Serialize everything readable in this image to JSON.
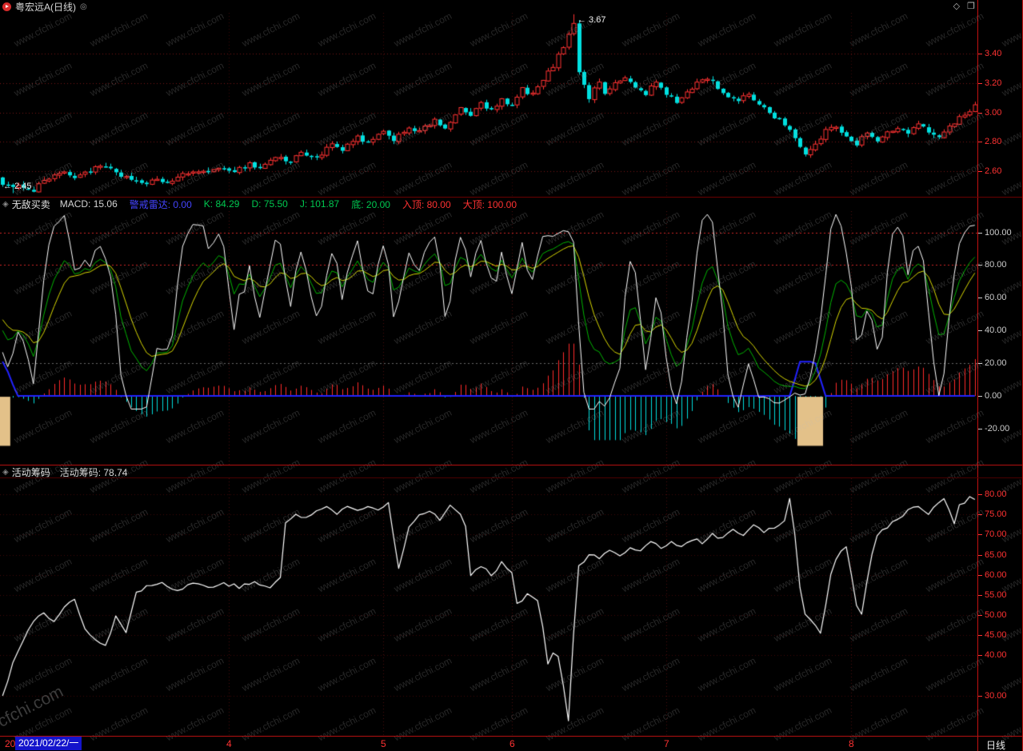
{
  "title_bar": {
    "stock": "粤宏远A(日线)",
    "favorite_icon": "◎",
    "corner_icon_diamond": "◇",
    "corner_icon_window": "❐"
  },
  "watermark": {
    "text": "www.cfchi.com",
    "big_text": "cfchi.com"
  },
  "indicator_header": {
    "icon": "◈",
    "name": "无敌买卖",
    "fields": [
      {
        "label": "MACD: 15.06",
        "color": "#d4d4d4"
      },
      {
        "label": "警戒雷达: 0.00",
        "color": "#4444ff"
      },
      {
        "label": "K: 84.29",
        "color": "#00c850"
      },
      {
        "label": "D: 75.50",
        "color": "#00c850"
      },
      {
        "label": "J: 101.87",
        "color": "#00c850"
      },
      {
        "label": "底: 20.00",
        "color": "#00c850"
      },
      {
        "label": "入顶: 80.00",
        "color": "#ff3232"
      },
      {
        "label": "大顶: 100.00",
        "color": "#ff3232"
      }
    ]
  },
  "chips_header": {
    "icon": "◈",
    "name": "活动筹码",
    "fields": [
      {
        "label": "活动筹码: 78.74",
        "color": "#d8d8d8"
      }
    ]
  },
  "xaxis": {
    "prefix": "20",
    "date": "2021/02/22/一",
    "months": [
      {
        "label": "4",
        "bar": 44
      },
      {
        "label": "5",
        "bar": 74
      },
      {
        "label": "6",
        "bar": 99
      },
      {
        "label": "7",
        "bar": 129
      },
      {
        "label": "8",
        "bar": 165
      }
    ],
    "period": "日线"
  },
  "chart_data": [
    {
      "type": "candlestick",
      "name": "price-daily",
      "axis_color": "#ff3232",
      "y_axis_labels": [
        "3.40",
        "3.20",
        "3.00",
        "2.80",
        "2.60"
      ],
      "ylim": [
        2.42,
        3.68
      ],
      "bars": 190,
      "up_color": "#ff3232",
      "down_color": "#00e0e0",
      "annotations": {
        "high": "← 3.67",
        "low": "← 2.45"
      },
      "high_bar": 111,
      "high_value": 3.67,
      "low_bar": 2,
      "low_value": 2.45,
      "close_waypoints": [
        [
          0,
          2.52
        ],
        [
          2,
          2.48
        ],
        [
          4,
          2.5
        ],
        [
          6,
          2.47
        ],
        [
          8,
          2.54
        ],
        [
          11,
          2.59
        ],
        [
          14,
          2.56
        ],
        [
          17,
          2.61
        ],
        [
          20,
          2.63
        ],
        [
          22,
          2.58
        ],
        [
          25,
          2.55
        ],
        [
          28,
          2.5
        ],
        [
          30,
          2.55
        ],
        [
          32,
          2.52
        ],
        [
          35,
          2.57
        ],
        [
          38,
          2.61
        ],
        [
          40,
          2.58
        ],
        [
          43,
          2.63
        ],
        [
          45,
          2.6
        ],
        [
          48,
          2.65
        ],
        [
          50,
          2.62
        ],
        [
          53,
          2.7
        ],
        [
          56,
          2.66
        ],
        [
          58,
          2.73
        ],
        [
          61,
          2.69
        ],
        [
          64,
          2.78
        ],
        [
          66,
          2.74
        ],
        [
          69,
          2.83
        ],
        [
          71,
          2.79
        ],
        [
          74,
          2.86
        ],
        [
          76,
          2.82
        ],
        [
          79,
          2.9
        ],
        [
          81,
          2.87
        ],
        [
          84,
          2.94
        ],
        [
          86,
          2.9
        ],
        [
          89,
          3.02
        ],
        [
          91,
          2.98
        ],
        [
          93,
          3.06
        ],
        [
          95,
          3.01
        ],
        [
          97,
          3.08
        ],
        [
          99,
          3.04
        ],
        [
          101,
          3.16
        ],
        [
          103,
          3.12
        ],
        [
          105,
          3.22
        ],
        [
          107,
          3.32
        ],
        [
          109,
          3.45
        ],
        [
          110,
          3.54
        ],
        [
          111,
          3.62
        ],
        [
          112,
          3.28
        ],
        [
          113,
          3.18
        ],
        [
          114,
          3.1
        ],
        [
          115,
          3.16
        ],
        [
          116,
          3.21
        ],
        [
          117,
          3.14
        ],
        [
          119,
          3.19
        ],
        [
          121,
          3.24
        ],
        [
          123,
          3.17
        ],
        [
          125,
          3.13
        ],
        [
          127,
          3.21
        ],
        [
          129,
          3.12
        ],
        [
          131,
          3.07
        ],
        [
          133,
          3.14
        ],
        [
          135,
          3.2
        ],
        [
          137,
          3.24
        ],
        [
          139,
          3.17
        ],
        [
          141,
          3.11
        ],
        [
          143,
          3.07
        ],
        [
          145,
          3.13
        ],
        [
          147,
          3.06
        ],
        [
          149,
          3.0
        ],
        [
          151,
          2.95
        ],
        [
          153,
          2.89
        ],
        [
          155,
          2.76
        ],
        [
          156,
          2.71
        ],
        [
          157,
          2.74
        ],
        [
          158,
          2.79
        ],
        [
          160,
          2.87
        ],
        [
          162,
          2.91
        ],
        [
          164,
          2.84
        ],
        [
          166,
          2.79
        ],
        [
          168,
          2.86
        ],
        [
          170,
          2.8
        ],
        [
          172,
          2.86
        ],
        [
          174,
          2.9
        ],
        [
          176,
          2.85
        ],
        [
          178,
          2.92
        ],
        [
          180,
          2.87
        ],
        [
          182,
          2.84
        ],
        [
          184,
          2.91
        ],
        [
          186,
          2.96
        ],
        [
          188,
          3.01
        ],
        [
          189,
          3.04
        ]
      ]
    },
    {
      "type": "kdj_macd_oscillator",
      "name": "无敌买卖",
      "axis_color": "#cccccc",
      "y_axis_labels": [
        "100.00",
        "80.00",
        "60.00",
        "40.00",
        "20.00",
        "0.00",
        "-20.00"
      ],
      "y_axis_values": [
        100,
        80,
        60,
        40,
        20,
        0,
        -20
      ],
      "ylim": [
        -42,
        113
      ],
      "red_gridlines": [
        100,
        80
      ],
      "gray_gridlines": [
        20
      ],
      "kdj_params": [
        9,
        3,
        3
      ],
      "macd_params": [
        12,
        26,
        9
      ],
      "macd_scale": 500,
      "line_colors": {
        "j": "#ffffff",
        "k": "#00b400",
        "d": "#d8d800"
      },
      "hist_colors": {
        "pos": "#ff2a2a",
        "neg": "#00dcdc"
      },
      "radar_color": "#2222ff",
      "radar_waypoints": [
        [
          0,
          21
        ],
        [
          1,
          15
        ],
        [
          2,
          7
        ],
        [
          3,
          0
        ],
        [
          153,
          0
        ],
        [
          154,
          10
        ],
        [
          155,
          21
        ],
        [
          156,
          21
        ],
        [
          157,
          21
        ],
        [
          158,
          20
        ],
        [
          159,
          10
        ],
        [
          160,
          0
        ],
        [
          189,
          0
        ]
      ],
      "signal_blocks": [
        {
          "start": 0,
          "end": 1
        },
        {
          "start": 155,
          "end": 159
        }
      ],
      "signal_color": "#e3c189",
      "signal_depth": -30
    },
    {
      "type": "line",
      "name": "活动筹码",
      "axis_color": "#ff3232",
      "color": "#ffffff",
      "y_axis_labels": [
        "80.00",
        "75.00",
        "70.00",
        "65.00",
        "60.00",
        "55.00",
        "50.00",
        "45.00",
        "40.00",
        "30.00"
      ],
      "y_axis_values": [
        80,
        75,
        70,
        65,
        60,
        55,
        50,
        45,
        40,
        30
      ],
      "ylim": [
        20,
        84
      ],
      "last_value": 78.74,
      "value_waypoints": [
        [
          0,
          30
        ],
        [
          2,
          38
        ],
        [
          4,
          44
        ],
        [
          6,
          48
        ],
        [
          8,
          51
        ],
        [
          10,
          48
        ],
        [
          12,
          52
        ],
        [
          14,
          54
        ],
        [
          16,
          47
        ],
        [
          18,
          44
        ],
        [
          20,
          42
        ],
        [
          22,
          50
        ],
        [
          24,
          46
        ],
        [
          26,
          56
        ],
        [
          28,
          57
        ],
        [
          31,
          58
        ],
        [
          34,
          56
        ],
        [
          37,
          58
        ],
        [
          40,
          57
        ],
        [
          43,
          58
        ],
        [
          46,
          57
        ],
        [
          49,
          58
        ],
        [
          52,
          57
        ],
        [
          54,
          59
        ],
        [
          55,
          73
        ],
        [
          57,
          75
        ],
        [
          59,
          74
        ],
        [
          61,
          76
        ],
        [
          63,
          77
        ],
        [
          65,
          75
        ],
        [
          67,
          77
        ],
        [
          69,
          76
        ],
        [
          71,
          77
        ],
        [
          73,
          76
        ],
        [
          75,
          78
        ],
        [
          76,
          70
        ],
        [
          77,
          62
        ],
        [
          79,
          72
        ],
        [
          81,
          75
        ],
        [
          83,
          76
        ],
        [
          85,
          74
        ],
        [
          87,
          77
        ],
        [
          89,
          75
        ],
        [
          90,
          72
        ],
        [
          91,
          60
        ],
        [
          93,
          62
        ],
        [
          95,
          60
        ],
        [
          97,
          63
        ],
        [
          99,
          61
        ],
        [
          100,
          53
        ],
        [
          102,
          55
        ],
        [
          104,
          54
        ],
        [
          105,
          47
        ],
        [
          106,
          38
        ],
        [
          107,
          41
        ],
        [
          108,
          40
        ],
        [
          109,
          33
        ],
        [
          110,
          24
        ],
        [
          111,
          45
        ],
        [
          112,
          62
        ],
        [
          114,
          65
        ],
        [
          116,
          64
        ],
        [
          118,
          66
        ],
        [
          120,
          65
        ],
        [
          122,
          67
        ],
        [
          124,
          66
        ],
        [
          126,
          68
        ],
        [
          128,
          67
        ],
        [
          130,
          68
        ],
        [
          132,
          67
        ],
        [
          134,
          69
        ],
        [
          136,
          68
        ],
        [
          138,
          70
        ],
        [
          140,
          69
        ],
        [
          142,
          71
        ],
        [
          144,
          70
        ],
        [
          146,
          72
        ],
        [
          148,
          71
        ],
        [
          150,
          72
        ],
        [
          152,
          73
        ],
        [
          153,
          79
        ],
        [
          154,
          70
        ],
        [
          155,
          57
        ],
        [
          156,
          50
        ],
        [
          157,
          49
        ],
        [
          158,
          47
        ],
        [
          159,
          45
        ],
        [
          160,
          52
        ],
        [
          161,
          60
        ],
        [
          162,
          64
        ],
        [
          163,
          66
        ],
        [
          164,
          67
        ],
        [
          165,
          60
        ],
        [
          166,
          52
        ],
        [
          167,
          50
        ],
        [
          168,
          58
        ],
        [
          169,
          65
        ],
        [
          170,
          70
        ],
        [
          172,
          72
        ],
        [
          174,
          74
        ],
        [
          176,
          76
        ],
        [
          178,
          77
        ],
        [
          180,
          75
        ],
        [
          182,
          78
        ],
        [
          183,
          79
        ],
        [
          184,
          76
        ],
        [
          185,
          73
        ],
        [
          186,
          77
        ],
        [
          188,
          79
        ],
        [
          189,
          78.74
        ]
      ]
    }
  ]
}
